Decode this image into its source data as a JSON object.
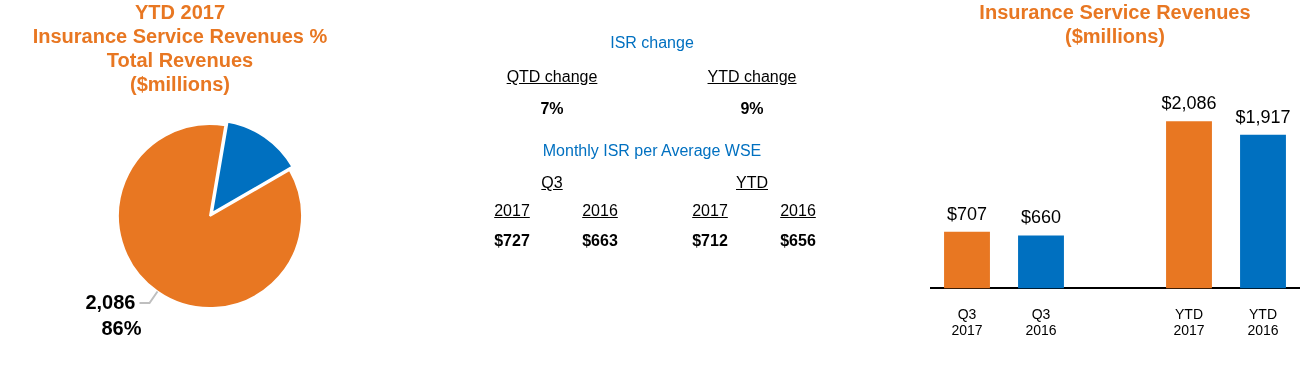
{
  "chart_data": [
    {
      "type": "pie",
      "title": "YTD 2017\nInsurance Service Revenues %\nTotal Revenues\n($millions)",
      "categories": [
        null,
        null
      ],
      "values": [
        86,
        14
      ],
      "colors": [
        "#e87722",
        "#0070c0"
      ],
      "value_labels": [
        "2,086\n86%",
        null
      ],
      "legend": false
    },
    {
      "type": "other",
      "annotations": [
        "ISR change",
        "QTD change",
        "YTD change",
        "7%",
        "9%",
        "Monthly ISR per Average WSE",
        "Q3",
        "YTD",
        "2017",
        "2016",
        "2017",
        "2016",
        "$727",
        "$663",
        "$712",
        "$656"
      ]
    },
    {
      "type": "bar",
      "title": "Insurance Service Revenues\n($millions)",
      "categories": [
        "Q3 2017",
        "Q3 2016",
        null,
        "YTD 2017",
        "YTD 2016"
      ],
      "values": [
        707,
        660,
        null,
        2086,
        1917
      ],
      "colors": [
        "#e87722",
        "#0070c0",
        "#e87722",
        "#e87722",
        "#0070c0"
      ],
      "value_labels": [
        "$707",
        "$660",
        null,
        "$2,086",
        "$1,917"
      ],
      "tick_labels": "x",
      "grid": false,
      "legend": false
    }
  ]
}
